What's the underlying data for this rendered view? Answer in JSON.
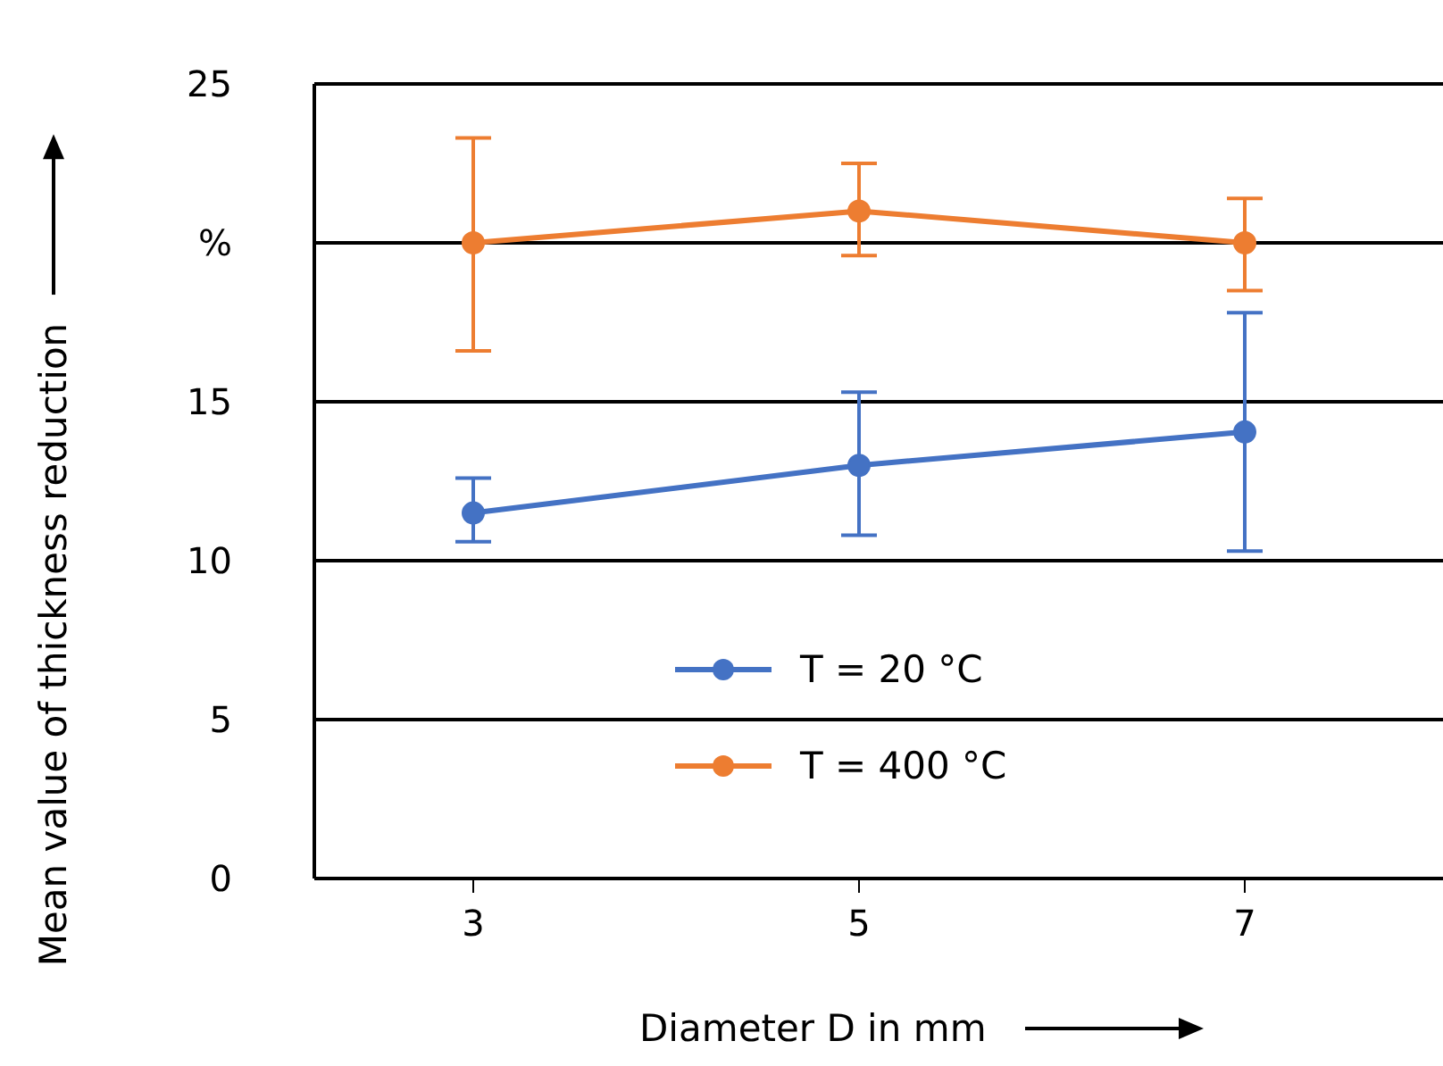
{
  "chart_data": {
    "type": "line",
    "xlabel": "Diameter D in mm",
    "ylabel": "Mean value of thickness reduction",
    "categories": [
      "3",
      "5",
      "7"
    ],
    "series": [
      {
        "name": "T = 20 °C",
        "color": "#4472c4",
        "values": [
          11.5,
          13.0,
          14.05
        ],
        "errors": [
          [
            10.6,
            12.6
          ],
          [
            10.8,
            15.3
          ],
          [
            10.3,
            17.8
          ]
        ]
      },
      {
        "name": "T = 400 °C",
        "color": "#ed7d31",
        "values": [
          20.0,
          21.0,
          20.0
        ],
        "errors": [
          [
            16.6,
            23.3
          ],
          [
            19.6,
            22.5
          ],
          [
            18.5,
            21.4
          ]
        ]
      }
    ],
    "ylim": [
      0,
      25
    ],
    "yticks": [
      0,
      5,
      10,
      15,
      {
        "value": 20,
        "label": "%"
      },
      25
    ],
    "grid": "y",
    "legend": "bottom",
    "marker": "circle",
    "line_style": "solid"
  }
}
